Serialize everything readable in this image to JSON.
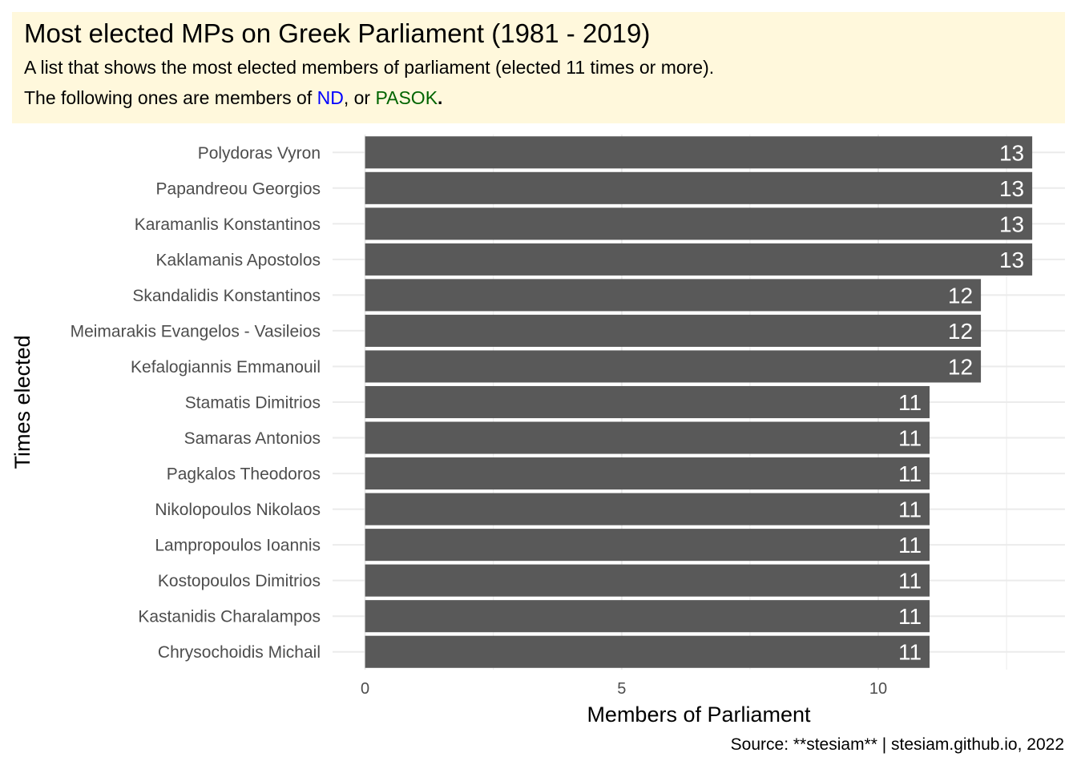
{
  "header": {
    "title": "Most elected MPs on Greek Parliament (1981 - 2019)",
    "subtitle_line1": "A list that shows the most elected members of parliament (elected 11 times or more).",
    "subtitle_line2_prefix": "The following ones are members of ",
    "party1": "ND",
    "sep": ", or ",
    "party2": "PASOK",
    "suffix": ".",
    "party1_color": "#0000ff",
    "party2_color": "#006400",
    "background": "#fff8dc"
  },
  "caption": "Source: **stesiam** | stesiam.github.io, 2022",
  "chart_data": {
    "type": "bar",
    "orientation": "horizontal",
    "categories": [
      "Polydoras Vyron",
      "Papandreou Georgios",
      "Karamanlis Konstantinos",
      "Kaklamanis Apostolos",
      "Skandalidis Konstantinos",
      "Meimarakis Evangelos - Vasileios",
      "Kefalogiannis Emmanouil",
      "Stamatis Dimitrios",
      "Samaras Antonios",
      "Pagkalos Theodoros",
      "Nikolopoulos Nikolaos",
      "Lampropoulos Ioannis",
      "Kostopoulos Dimitrios",
      "Kastanidis Charalampos",
      "Chrysochoidis Michail"
    ],
    "values": [
      13,
      13,
      13,
      13,
      12,
      12,
      12,
      11,
      11,
      11,
      11,
      11,
      11,
      11,
      11
    ],
    "xlabel": "Members of Parliament",
    "ylabel": "Times elected",
    "xlim": [
      0,
      13.6
    ],
    "xticks": [
      0,
      5,
      10
    ],
    "xtick_labels": [
      "0",
      "5",
      "10"
    ],
    "bar_color": "#595959",
    "label_color": "#ffffff",
    "grid": true,
    "legend": "none"
  }
}
